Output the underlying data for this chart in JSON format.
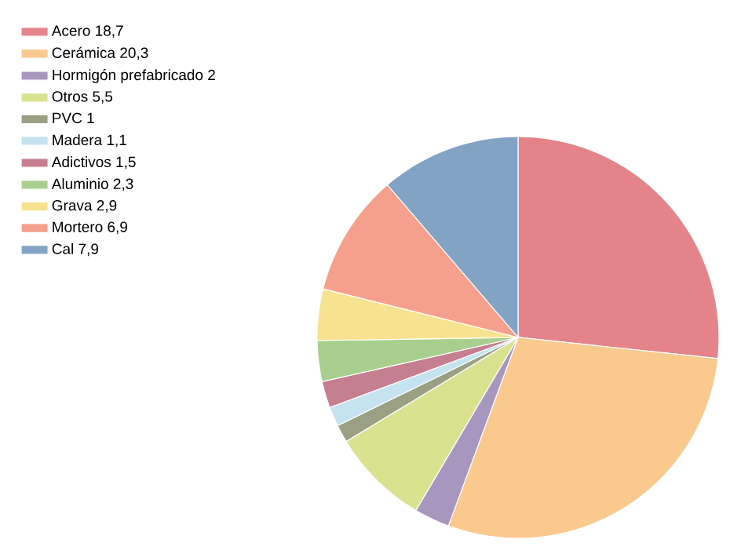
{
  "chart_data": {
    "type": "pie",
    "legend": "top left",
    "categories": [
      "Acero 18,7",
      "Cerámica 20,3",
      "Hormigón prefabricado 2",
      "Otros 5,5",
      "PVC 1",
      "Madera 1,1",
      "Adictivos 1,5",
      "Aluminio 2,3",
      "Grava 2,9",
      "Mortero 6,9",
      "Cal 7,9"
    ],
    "values": [
      18.7,
      20.3,
      2,
      5.5,
      1,
      1.1,
      1.5,
      2.3,
      2.9,
      6.9,
      7.9
    ],
    "colors": [
      "#e4848a",
      "#f9c98e",
      "#a797bf",
      "#d8e28f",
      "#9aa084",
      "#c5e3ef",
      "#c57f90",
      "#a8cf8e",
      "#f7e38f",
      "#f4a08c",
      "#82a3c4"
    ]
  }
}
